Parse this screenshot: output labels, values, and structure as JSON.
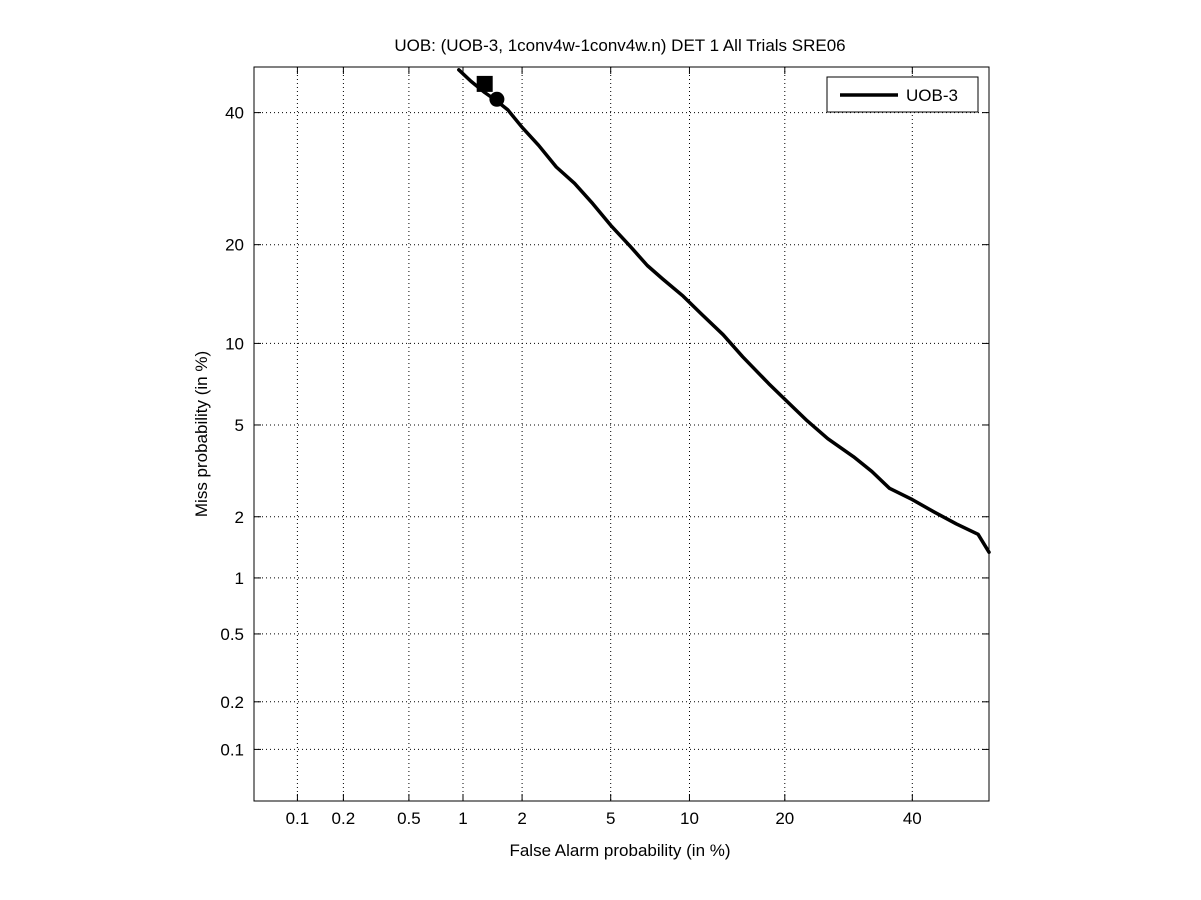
{
  "chart_data": {
    "type": "line",
    "title": "UOB: (UOB-3, 1conv4w-1conv4w.n) DET 1 All Trials SRE06",
    "xlabel": "False Alarm probability (in %)",
    "ylabel": "Miss probability (in %)",
    "x_scale": "probit",
    "y_scale": "probit",
    "xlim": [
      0.05,
      54
    ],
    "ylim": [
      0.045,
      48
    ],
    "x_ticks": [
      0.1,
      0.2,
      0.5,
      1,
      2,
      5,
      10,
      20,
      40
    ],
    "x_tick_labels": [
      "0.1",
      "0.2",
      "0.5",
      "1",
      "2",
      "5",
      "10",
      "20",
      "40"
    ],
    "y_ticks": [
      0.1,
      0.2,
      0.5,
      1,
      2,
      5,
      10,
      20,
      40
    ],
    "y_tick_labels": [
      "0.1",
      "0.2",
      "0.5",
      "1",
      "2",
      "5",
      "10",
      "20",
      "40"
    ],
    "grid": true,
    "legend_position": "top-right",
    "series": [
      {
        "name": "UOB-3",
        "color": "#000000",
        "x": [
          0.95,
          1.1,
          1.3,
          1.5,
          1.7,
          2.0,
          2.4,
          2.9,
          3.5,
          4.2,
          5.0,
          6.0,
          7.0,
          8.0,
          9.5,
          11.0,
          13.0,
          15.0,
          18.0,
          20.0,
          23.0,
          26.0,
          30.0,
          33.0,
          36.0,
          40.0,
          44.0,
          48.0,
          52.0,
          54.0
        ],
        "y": [
          47.5,
          45.5,
          43.5,
          42.0,
          40.5,
          37.5,
          34.5,
          31.0,
          28.5,
          25.5,
          22.5,
          19.8,
          17.5,
          16.0,
          14.2,
          12.5,
          10.7,
          9.0,
          7.2,
          6.3,
          5.2,
          4.4,
          3.7,
          3.2,
          2.7,
          2.4,
          2.1,
          1.85,
          1.65,
          1.35
        ]
      }
    ],
    "markers": [
      {
        "shape": "square",
        "x": 1.3,
        "y": 45.0
      },
      {
        "shape": "circle",
        "x": 1.5,
        "y": 42.3
      }
    ]
  }
}
